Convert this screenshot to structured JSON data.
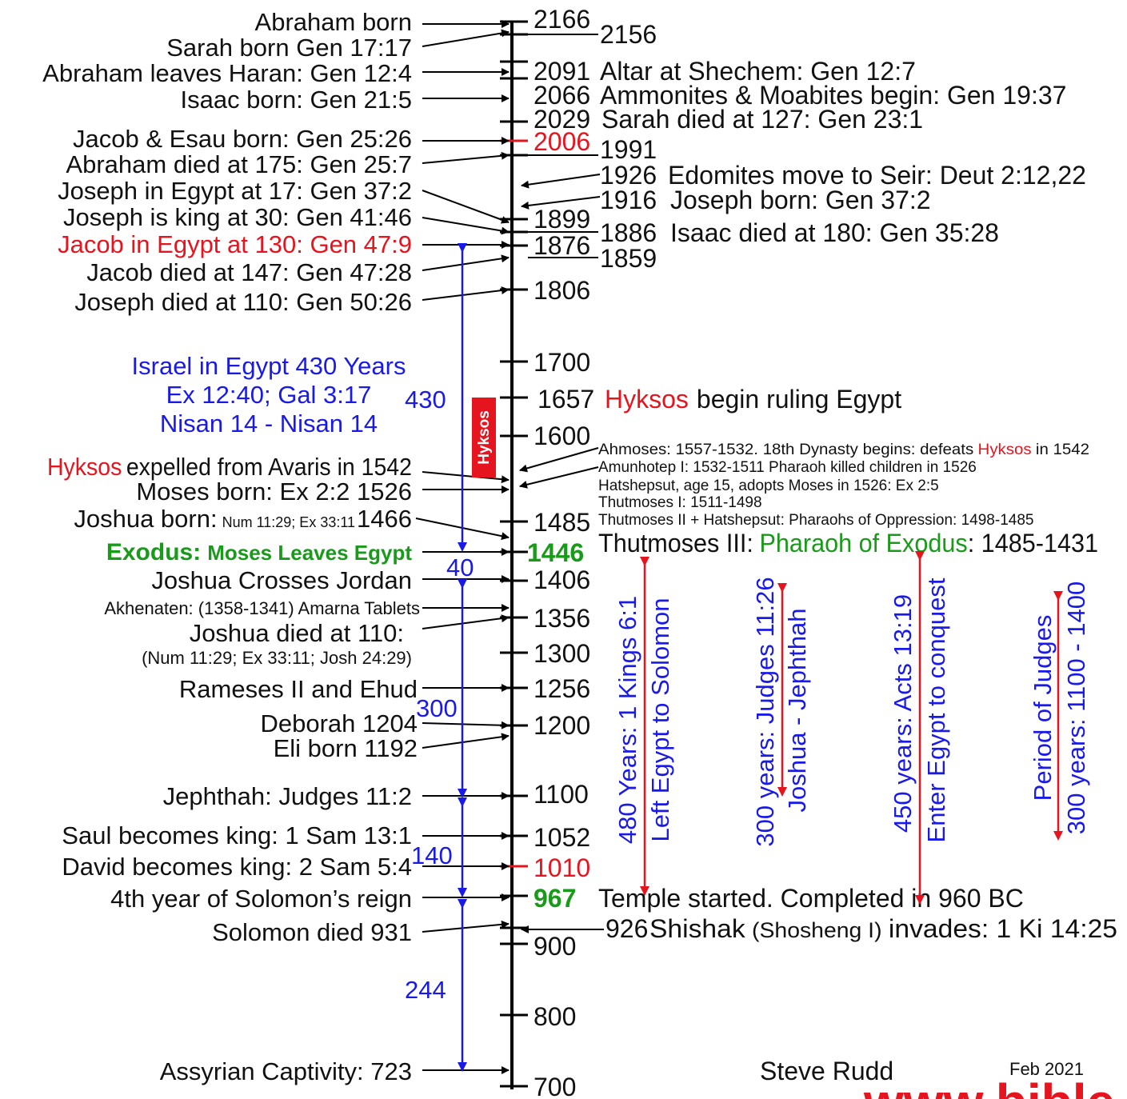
{
  "colors": {
    "axis": "#000000",
    "blue": "#1a1ae6",
    "red": "#e6141e",
    "green": "#1a9a1a",
    "text": "#111111"
  },
  "left_events": {
    "abraham_born": "Abraham born",
    "sarah_born": "Sarah born Gen 17:17",
    "abraham_leaves": "Abraham leaves Haran: Gen 12:4",
    "isaac_born": "Isaac born: Gen 21:5",
    "jacob_esau": "Jacob & Esau born: Gen 25:26",
    "abraham_died": "Abraham died at 175: Gen 25:7",
    "joseph_egypt": "Joseph in Egypt at 17: Gen 37:2",
    "joseph_king": "Joseph is king at 30: Gen 41:46",
    "jacob_egypt": "Jacob in Egypt at 130: Gen 47:9",
    "jacob_died": "Jacob died at 147: Gen 47:28",
    "joseph_died": "Joseph died at 110: Gen 50:26",
    "hyksos_word": "Hyksos",
    "hyksos_expelled": "expelled from Avaris in 1542",
    "moses_born": "Moses born: Ex 2:2 1526",
    "joshua_born": "Joshua born:",
    "joshua_born_ref": "Num 11:29; Ex 33:11",
    "joshua_born_year": "1466",
    "exodus_word": "Exodus:",
    "exodus_text": "Moses Leaves Egypt",
    "joshua_jordan": "Joshua Crosses Jordan",
    "akhenaten": "Akhenaten: (1358-1341) Amarna Tablets",
    "joshua_died": "Joshua died at 110:",
    "joshua_died_ref": "(Num 11:29; Ex 33:11; Josh 24:29)",
    "rameses": "Rameses II and Ehud",
    "deborah": "Deborah 1204",
    "eli": "Eli born 1192",
    "jephthah": "Jephthah: Judges 11:2",
    "saul": "Saul becomes king: 1 Sam 13:1",
    "david": "David becomes king: 2 Sam 5:4",
    "solomon_4th": "4th year of Solomon’s reign",
    "solomon_died": "Solomon died 931",
    "assyrian": "Assyrian Captivity: 723"
  },
  "israel_egypt": {
    "line1": "Israel in Egypt 430 Years",
    "line2": "Ex 12:40; Gal 3:17",
    "line3": "Nisan 14 - Nisan 14"
  },
  "spans": {
    "s430": "430",
    "s40": "40",
    "s300": "300",
    "s140": "140",
    "s244": "244"
  },
  "hyksos_box": "Hyksos",
  "years": {
    "y2166": "2166",
    "y2156": "2156",
    "y2091": "2091",
    "y2066": "2066",
    "y2029": "2029",
    "y2006": "2006",
    "y1991": "1991",
    "y1926": "1926",
    "y1916": "1916",
    "y1899": "1899",
    "y1886": "1886",
    "y1876": "1876",
    "y1859": "1859",
    "y1806": "1806",
    "y1700": "1700",
    "y1657": "1657",
    "y1600": "1600",
    "y1485": "1485",
    "y1446": "1446",
    "y1406": "1406",
    "y1356": "1356",
    "y1300": "1300",
    "y1256": "1256",
    "y1200": "1200",
    "y1100": "1100",
    "y1052": "1052",
    "y1010": "1010",
    "y967": "967",
    "y926": "926",
    "y900": "900",
    "y800": "800",
    "y700": "700"
  },
  "right_events": {
    "altar": "Altar at Shechem: Gen 12:7",
    "ammonites": "Ammonites & Moabites begin: Gen 19:37",
    "sarah_died": "Sarah died at 127: Gen 23:1",
    "edomites": "Edomites move to Seir: Deut 2:12,22",
    "joseph_born": "Joseph born: Gen 37:2",
    "isaac_died": "Isaac died at 180: Gen 35:28",
    "hyksos_word": "Hyksos",
    "hyksos_rule": "begin ruling Egypt",
    "ahmoses_a": "Ahmoses: 1557-1532. 18th Dynasty begins: defeats",
    "ahmoses_b": "in 1542",
    "amunhotep": "Amunhotep I: 1532-1511 Pharaoh killed children in 1526",
    "hatshepsut": "Hatshepsut, age 15, adopts Moses in 1526: Ex 2:5",
    "thutmoses1": "Thutmoses I: 1511-1498",
    "thutmoses2": "Thutmoses II + Hatshepsut: Pharaohs of Oppression: 1498-1485",
    "thutmoses3_a": "Thutmoses III:",
    "thutmoses3_b": "Pharaoh of Exodus",
    "thutmoses3_c": ": 1485-1431",
    "temple": "Temple started. Completed in 960 BC",
    "shishak_a": "Shishak",
    "shishak_b": "(Shosheng I)",
    "shishak_c": "invades: 1 Ki 14:25"
  },
  "vertical_notes": {
    "v480_a": "480 Years: 1 Kings 6:1",
    "v480_b": "Left Egypt to  Solomon",
    "v300_a": "300 years: Judges 11:26",
    "v300_b": "Joshua - Jephthah",
    "v450_a": "450 years: Acts 13:19",
    "v450_b": "Enter Egypt to conquest",
    "vj_a": "Period of Judges",
    "vj_b": "300 years: 1100 - 1400"
  },
  "credit": {
    "author": "Steve Rudd",
    "date": "Feb 2021",
    "site": "www.bible.ca"
  }
}
